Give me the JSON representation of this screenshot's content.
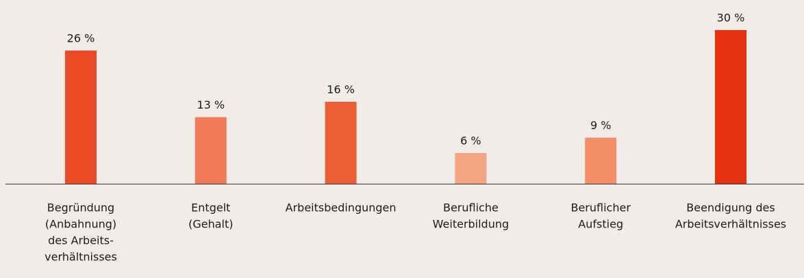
{
  "chart_data": {
    "type": "bar",
    "categories": [
      [
        "Begründung",
        "(Anbahnung)",
        "des Arbeits-",
        "verhältnisses"
      ],
      [
        "Entgelt",
        "(Gehalt)"
      ],
      [
        "Arbeitsbedingungen"
      ],
      [
        "Berufliche",
        "Weiterbildung"
      ],
      [
        "Beruflicher",
        "Aufstieg"
      ],
      [
        "Beendigung des",
        "Arbeitsverhältnisses"
      ]
    ],
    "values": [
      26,
      13,
      16,
      6,
      9,
      30
    ],
    "value_labels": [
      "26 %",
      "13 %",
      "16 %",
      "6 %",
      "9 %",
      "30 %"
    ],
    "colors": [
      "#ec4a25",
      "#f07b56",
      "#ec5f34",
      "#f5a482",
      "#f28f68",
      "#e5310f"
    ]
  }
}
